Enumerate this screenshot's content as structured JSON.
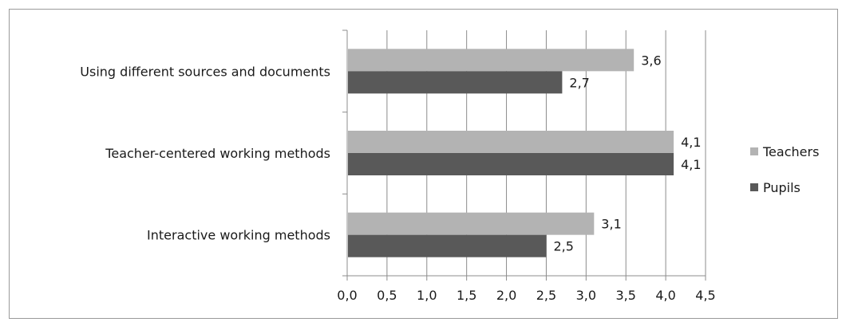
{
  "chart_data": {
    "type": "bar",
    "orientation": "horizontal",
    "categories": [
      "Using different sources and documents",
      "Teacher-centered working methods",
      "Interactive working methods"
    ],
    "series": [
      {
        "name": "Teachers",
        "values": [
          3.6,
          4.1,
          3.1
        ],
        "labels": [
          "3,6",
          "4,1",
          "3,1"
        ],
        "color": "#b3b3b3"
      },
      {
        "name": "Pupils",
        "values": [
          2.7,
          4.1,
          2.5
        ],
        "labels": [
          "2,7",
          "4,1",
          "2,5"
        ],
        "color": "#595959"
      }
    ],
    "xlim": [
      0,
      4.5
    ],
    "xticks": [
      0,
      0.5,
      1,
      1.5,
      2,
      2.5,
      3,
      3.5,
      4,
      4.5
    ],
    "xtick_labels": [
      "0,0",
      "0,5",
      "1,0",
      "1,5",
      "2,0",
      "2,5",
      "3,0",
      "3,5",
      "4,0",
      "4,5"
    ],
    "grid": true,
    "legend_position": "right",
    "title": "",
    "xlabel": "",
    "ylabel": ""
  }
}
